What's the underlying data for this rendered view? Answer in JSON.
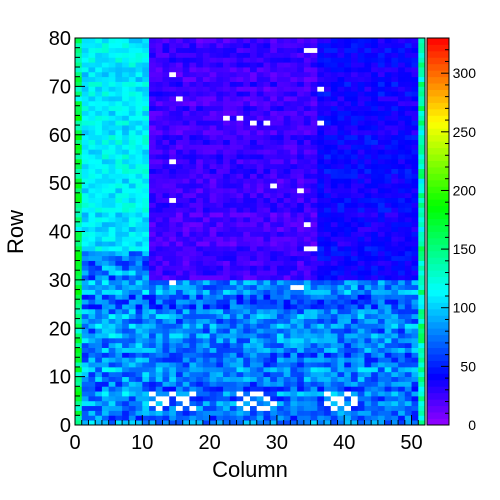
{
  "chart_data": {
    "type": "heatmap",
    "title": "",
    "xlabel": "Column",
    "ylabel": "Row",
    "xlim": [
      0,
      52
    ],
    "ylim": [
      0,
      80
    ],
    "zlim": [
      0,
      330
    ],
    "x_ticks": [
      "0",
      "10",
      "20",
      "30",
      "40",
      "50"
    ],
    "y_ticks": [
      "0",
      "10",
      "20",
      "30",
      "40",
      "50",
      "60",
      "70",
      "80"
    ],
    "z_ticks": [
      "0",
      "50",
      "100",
      "150",
      "200",
      "250",
      "300"
    ],
    "n_columns": 52,
    "n_rows": 80,
    "colormap": "rainbow (violet → blue → cyan → green → yellow → orange → red)",
    "grid": false,
    "colorbar": "right",
    "empty_cells_color": "#ffffff",
    "regions": [
      {
        "columns": [
          0,
          1
        ],
        "rows": [
          0,
          80
        ],
        "value_range": [
          110,
          200
        ],
        "description": "left edge"
      },
      {
        "columns": [
          1,
          11
        ],
        "rows": [
          36,
          80
        ],
        "value_range": [
          90,
          130
        ]
      },
      {
        "columns": [
          1,
          11
        ],
        "rows": [
          0,
          36
        ],
        "value_range": [
          40,
          120
        ]
      },
      {
        "columns": [
          11,
          52
        ],
        "rows": [
          0,
          30
        ],
        "value_range": [
          40,
          110
        ]
      },
      {
        "columns": [
          11,
          36
        ],
        "rows": [
          30,
          80
        ],
        "value_range": [
          10,
          40
        ]
      },
      {
        "columns": [
          36,
          52
        ],
        "rows": [
          30,
          80
        ],
        "value_range": [
          25,
          55
        ]
      },
      {
        "columns": [
          51,
          52
        ],
        "rows": [
          0,
          80
        ],
        "value_range": [
          100,
          170
        ],
        "description": "right edge"
      }
    ],
    "empty_cells": [
      [
        14,
        72
      ],
      [
        15,
        67
      ],
      [
        22,
        63
      ],
      [
        24,
        63
      ],
      [
        26,
        62
      ],
      [
        28,
        62
      ],
      [
        34,
        77
      ],
      [
        35,
        77
      ],
      [
        36,
        69
      ],
      [
        36,
        62
      ],
      [
        14,
        54
      ],
      [
        29,
        49
      ],
      [
        33,
        48
      ],
      [
        14,
        46
      ],
      [
        34,
        41
      ],
      [
        34,
        36
      ],
      [
        35,
        36
      ],
      [
        14,
        29
      ],
      [
        32,
        28
      ],
      [
        33,
        28
      ],
      [
        11,
        6
      ],
      [
        12,
        5
      ],
      [
        13,
        5
      ],
      [
        14,
        6
      ],
      [
        15,
        5
      ],
      [
        16,
        5
      ],
      [
        17,
        6
      ],
      [
        11,
        4
      ],
      [
        12,
        3
      ],
      [
        13,
        4
      ],
      [
        15,
        3
      ],
      [
        17,
        3
      ],
      [
        16,
        4
      ],
      [
        24,
        6
      ],
      [
        25,
        5
      ],
      [
        26,
        6
      ],
      [
        27,
        6
      ],
      [
        28,
        5
      ],
      [
        24,
        4
      ],
      [
        25,
        3
      ],
      [
        27,
        3
      ],
      [
        28,
        3
      ],
      [
        29,
        4
      ],
      [
        26,
        4
      ],
      [
        37,
        6
      ],
      [
        38,
        5
      ],
      [
        39,
        5
      ],
      [
        40,
        6
      ],
      [
        41,
        5
      ],
      [
        37,
        4
      ],
      [
        38,
        3
      ],
      [
        39,
        4
      ],
      [
        40,
        3
      ],
      [
        41,
        4
      ]
    ]
  }
}
